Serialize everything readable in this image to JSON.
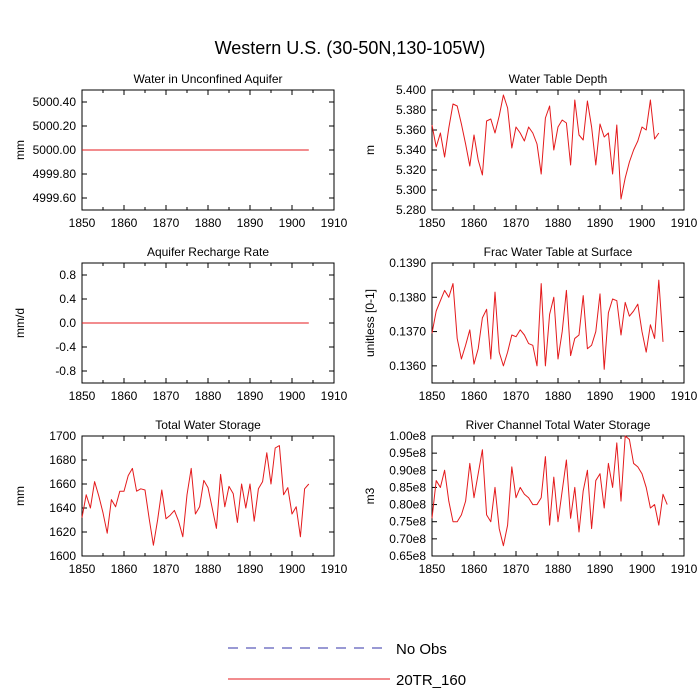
{
  "figure": {
    "title": "Western U.S. (30-50N,130-105W)"
  },
  "legend": {
    "items": [
      {
        "label": "No Obs",
        "color": "#3333aa",
        "style": "dashed"
      },
      {
        "label": "20TR_160",
        "color": "#e41a1c",
        "style": "solid"
      }
    ]
  },
  "chart_data": [
    {
      "type": "line",
      "title": "Water in Unconfined Aquifer",
      "ylabel": "mm",
      "xlim": [
        1850,
        1910
      ],
      "xticks": [
        1850,
        1860,
        1870,
        1880,
        1890,
        1900,
        1910
      ],
      "ylim": [
        4999.5,
        5000.5
      ],
      "yticks": [
        4999.6,
        4999.8,
        5000.0,
        5000.2,
        5000.4
      ],
      "ytick_labels": [
        "4999.60",
        "4999.80",
        "5000.00",
        "5000.20",
        "5000.40"
      ],
      "series": [
        {
          "name": "20TR_160",
          "color": "#e41a1c",
          "x_start": 1850,
          "values": [
            5000,
            5000,
            5000,
            5000,
            5000,
            5000,
            5000,
            5000,
            5000,
            5000,
            5000,
            5000,
            5000,
            5000,
            5000,
            5000,
            5000,
            5000,
            5000,
            5000,
            5000,
            5000,
            5000,
            5000,
            5000,
            5000,
            5000,
            5000,
            5000,
            5000,
            5000,
            5000,
            5000,
            5000,
            5000,
            5000,
            5000,
            5000,
            5000,
            5000,
            5000,
            5000,
            5000,
            5000,
            5000,
            5000,
            5000,
            5000,
            5000,
            5000,
            5000,
            5000,
            5000,
            5000,
            5000
          ]
        }
      ]
    },
    {
      "type": "line",
      "title": "Water Table Depth",
      "ylabel": "m",
      "xlim": [
        1850,
        1910
      ],
      "xticks": [
        1850,
        1860,
        1870,
        1880,
        1890,
        1900,
        1910
      ],
      "ylim": [
        5.28,
        5.4
      ],
      "yticks": [
        5.28,
        5.3,
        5.32,
        5.34,
        5.36,
        5.38,
        5.4
      ],
      "ytick_labels": [
        "5.280",
        "5.300",
        "5.320",
        "5.340",
        "5.360",
        "5.380",
        "5.400"
      ],
      "series": [
        {
          "name": "20TR_160",
          "color": "#e41a1c",
          "x_start": 1850,
          "values": [
            5.365,
            5.343,
            5.357,
            5.333,
            5.362,
            5.386,
            5.384,
            5.366,
            5.346,
            5.324,
            5.355,
            5.33,
            5.315,
            5.369,
            5.371,
            5.357,
            5.374,
            5.395,
            5.382,
            5.342,
            5.363,
            5.357,
            5.349,
            5.363,
            5.357,
            5.346,
            5.316,
            5.372,
            5.384,
            5.34,
            5.363,
            5.37,
            5.367,
            5.325,
            5.39,
            5.355,
            5.35,
            5.389,
            5.363,
            5.325,
            5.366,
            5.353,
            5.357,
            5.316,
            5.365,
            5.291,
            5.312,
            5.328,
            5.34,
            5.349,
            5.363,
            5.36,
            5.39,
            5.351,
            5.357
          ]
        }
      ]
    },
    {
      "type": "line",
      "title": "Aquifer Recharge Rate",
      "ylabel": "mm/d",
      "xlim": [
        1850,
        1910
      ],
      "xticks": [
        1850,
        1860,
        1870,
        1880,
        1890,
        1900,
        1910
      ],
      "ylim": [
        -1.0,
        1.0
      ],
      "yticks": [
        -0.8,
        -0.4,
        0.0,
        0.4,
        0.8
      ],
      "ytick_labels": [
        "-0.8",
        "-0.4",
        "0.0",
        "0.4",
        "0.8"
      ],
      "series": [
        {
          "name": "20TR_160",
          "color": "#e41a1c",
          "x_start": 1850,
          "values": [
            0,
            0,
            0,
            0,
            0,
            0,
            0,
            0,
            0,
            0,
            0,
            0,
            0,
            0,
            0,
            0,
            0,
            0,
            0,
            0,
            0,
            0,
            0,
            0,
            0,
            0,
            0,
            0,
            0,
            0,
            0,
            0,
            0,
            0,
            0,
            0,
            0,
            0,
            0,
            0,
            0,
            0,
            0,
            0,
            0,
            0,
            0,
            0,
            0,
            0,
            0,
            0,
            0,
            0,
            0
          ]
        }
      ]
    },
    {
      "type": "line",
      "title": "Frac Water Table at Surface",
      "ylabel": "unitless [0-1]",
      "xlim": [
        1850,
        1910
      ],
      "xticks": [
        1850,
        1860,
        1870,
        1880,
        1890,
        1900,
        1910
      ],
      "ylim": [
        0.1355,
        0.139
      ],
      "yticks": [
        0.136,
        0.137,
        0.138,
        0.139
      ],
      "ytick_labels": [
        "0.1360",
        "0.1370",
        "0.1380",
        "0.1390"
      ],
      "series": [
        {
          "name": "20TR_160",
          "color": "#e41a1c",
          "x_start": 1850,
          "values": [
            0.13695,
            0.1376,
            0.1379,
            0.1382,
            0.138,
            0.1384,
            0.1368,
            0.1362,
            0.1366,
            0.13705,
            0.13605,
            0.1365,
            0.1374,
            0.13765,
            0.1362,
            0.13815,
            0.1364,
            0.136,
            0.1364,
            0.1369,
            0.13685,
            0.13705,
            0.1369,
            0.13665,
            0.1366,
            0.136,
            0.1384,
            0.136,
            0.1375,
            0.138,
            0.1362,
            0.137,
            0.1382,
            0.1363,
            0.1368,
            0.1369,
            0.13805,
            0.1365,
            0.1366,
            0.137,
            0.1381,
            0.1359,
            0.13755,
            0.13795,
            0.1379,
            0.1369,
            0.13785,
            0.13745,
            0.1376,
            0.1378,
            0.137,
            0.1364,
            0.1372,
            0.1368,
            0.1385,
            0.1367
          ]
        }
      ]
    },
    {
      "type": "line",
      "title": "Total Water Storage",
      "ylabel": "mm",
      "xlim": [
        1850,
        1910
      ],
      "xticks": [
        1850,
        1860,
        1870,
        1880,
        1890,
        1900,
        1910
      ],
      "ylim": [
        1600,
        1700
      ],
      "yticks": [
        1600,
        1620,
        1640,
        1660,
        1680,
        1700
      ],
      "ytick_labels": [
        "1600",
        "1620",
        "1640",
        "1660",
        "1680",
        "1700"
      ],
      "series": [
        {
          "name": "20TR_160",
          "color": "#e41a1c",
          "x_start": 1850,
          "values": [
            1632,
            1651,
            1640,
            1662,
            1650,
            1636,
            1619,
            1647,
            1641,
            1654,
            1654,
            1667,
            1673,
            1654,
            1656,
            1655,
            1631,
            1609,
            1630,
            1655,
            1631,
            1634,
            1638,
            1629,
            1616,
            1651,
            1673,
            1635,
            1641,
            1663,
            1657,
            1640,
            1623,
            1668,
            1641,
            1658,
            1652,
            1628,
            1660,
            1640,
            1660,
            1629,
            1656,
            1662,
            1686,
            1660,
            1690,
            1692,
            1651,
            1657,
            1635,
            1641,
            1616,
            1656,
            1660
          ]
        }
      ]
    },
    {
      "type": "line",
      "title": "River Channel Total Water Storage",
      "ylabel": "m3",
      "xlim": [
        1850,
        1910
      ],
      "xticks": [
        1850,
        1860,
        1870,
        1880,
        1890,
        1900,
        1910
      ],
      "ylim": [
        65000000.0,
        100000000.0
      ],
      "yticks": [
        65000000.0,
        70000000.0,
        75000000.0,
        80000000.0,
        85000000.0,
        90000000.0,
        95000000.0,
        100000000.0
      ],
      "ytick_labels": [
        "0.65e8",
        "0.70e8",
        "0.75e8",
        "0.80e8",
        "0.85e8",
        "0.90e8",
        "0.95e8",
        "1.00e8"
      ],
      "series": [
        {
          "name": "20TR_160",
          "color": "#e41a1c",
          "x_start": 1850,
          "values": [
            76000000.0,
            87000000.0,
            85000000.0,
            90000000.0,
            81000000.0,
            75000000.0,
            75000000.0,
            77000000.0,
            81000000.0,
            92000000.0,
            82000000.0,
            89000000.0,
            96000000.0,
            77000000.0,
            75000000.0,
            85000000.0,
            73000000.0,
            68000000.0,
            74000000.0,
            91000000.0,
            82000000.0,
            85000000.0,
            83000000.0,
            82000000.0,
            80000000.0,
            80000000.0,
            82000000.0,
            94000000.0,
            74000000.0,
            88000000.0,
            75000000.0,
            84000000.0,
            93000000.0,
            76000000.0,
            85000000.0,
            72000000.0,
            84000000.0,
            90000000.0,
            73000000.0,
            87000000.0,
            89000000.0,
            79000000.0,
            92000000.0,
            85000000.0,
            98000000.0,
            81000000.0,
            100000000.0,
            99000000.0,
            92000000.0,
            91000000.0,
            89000000.0,
            85000000.0,
            79000000.0,
            80000000.0,
            74000000.0,
            83000000.0,
            80000000.0
          ]
        }
      ]
    }
  ]
}
